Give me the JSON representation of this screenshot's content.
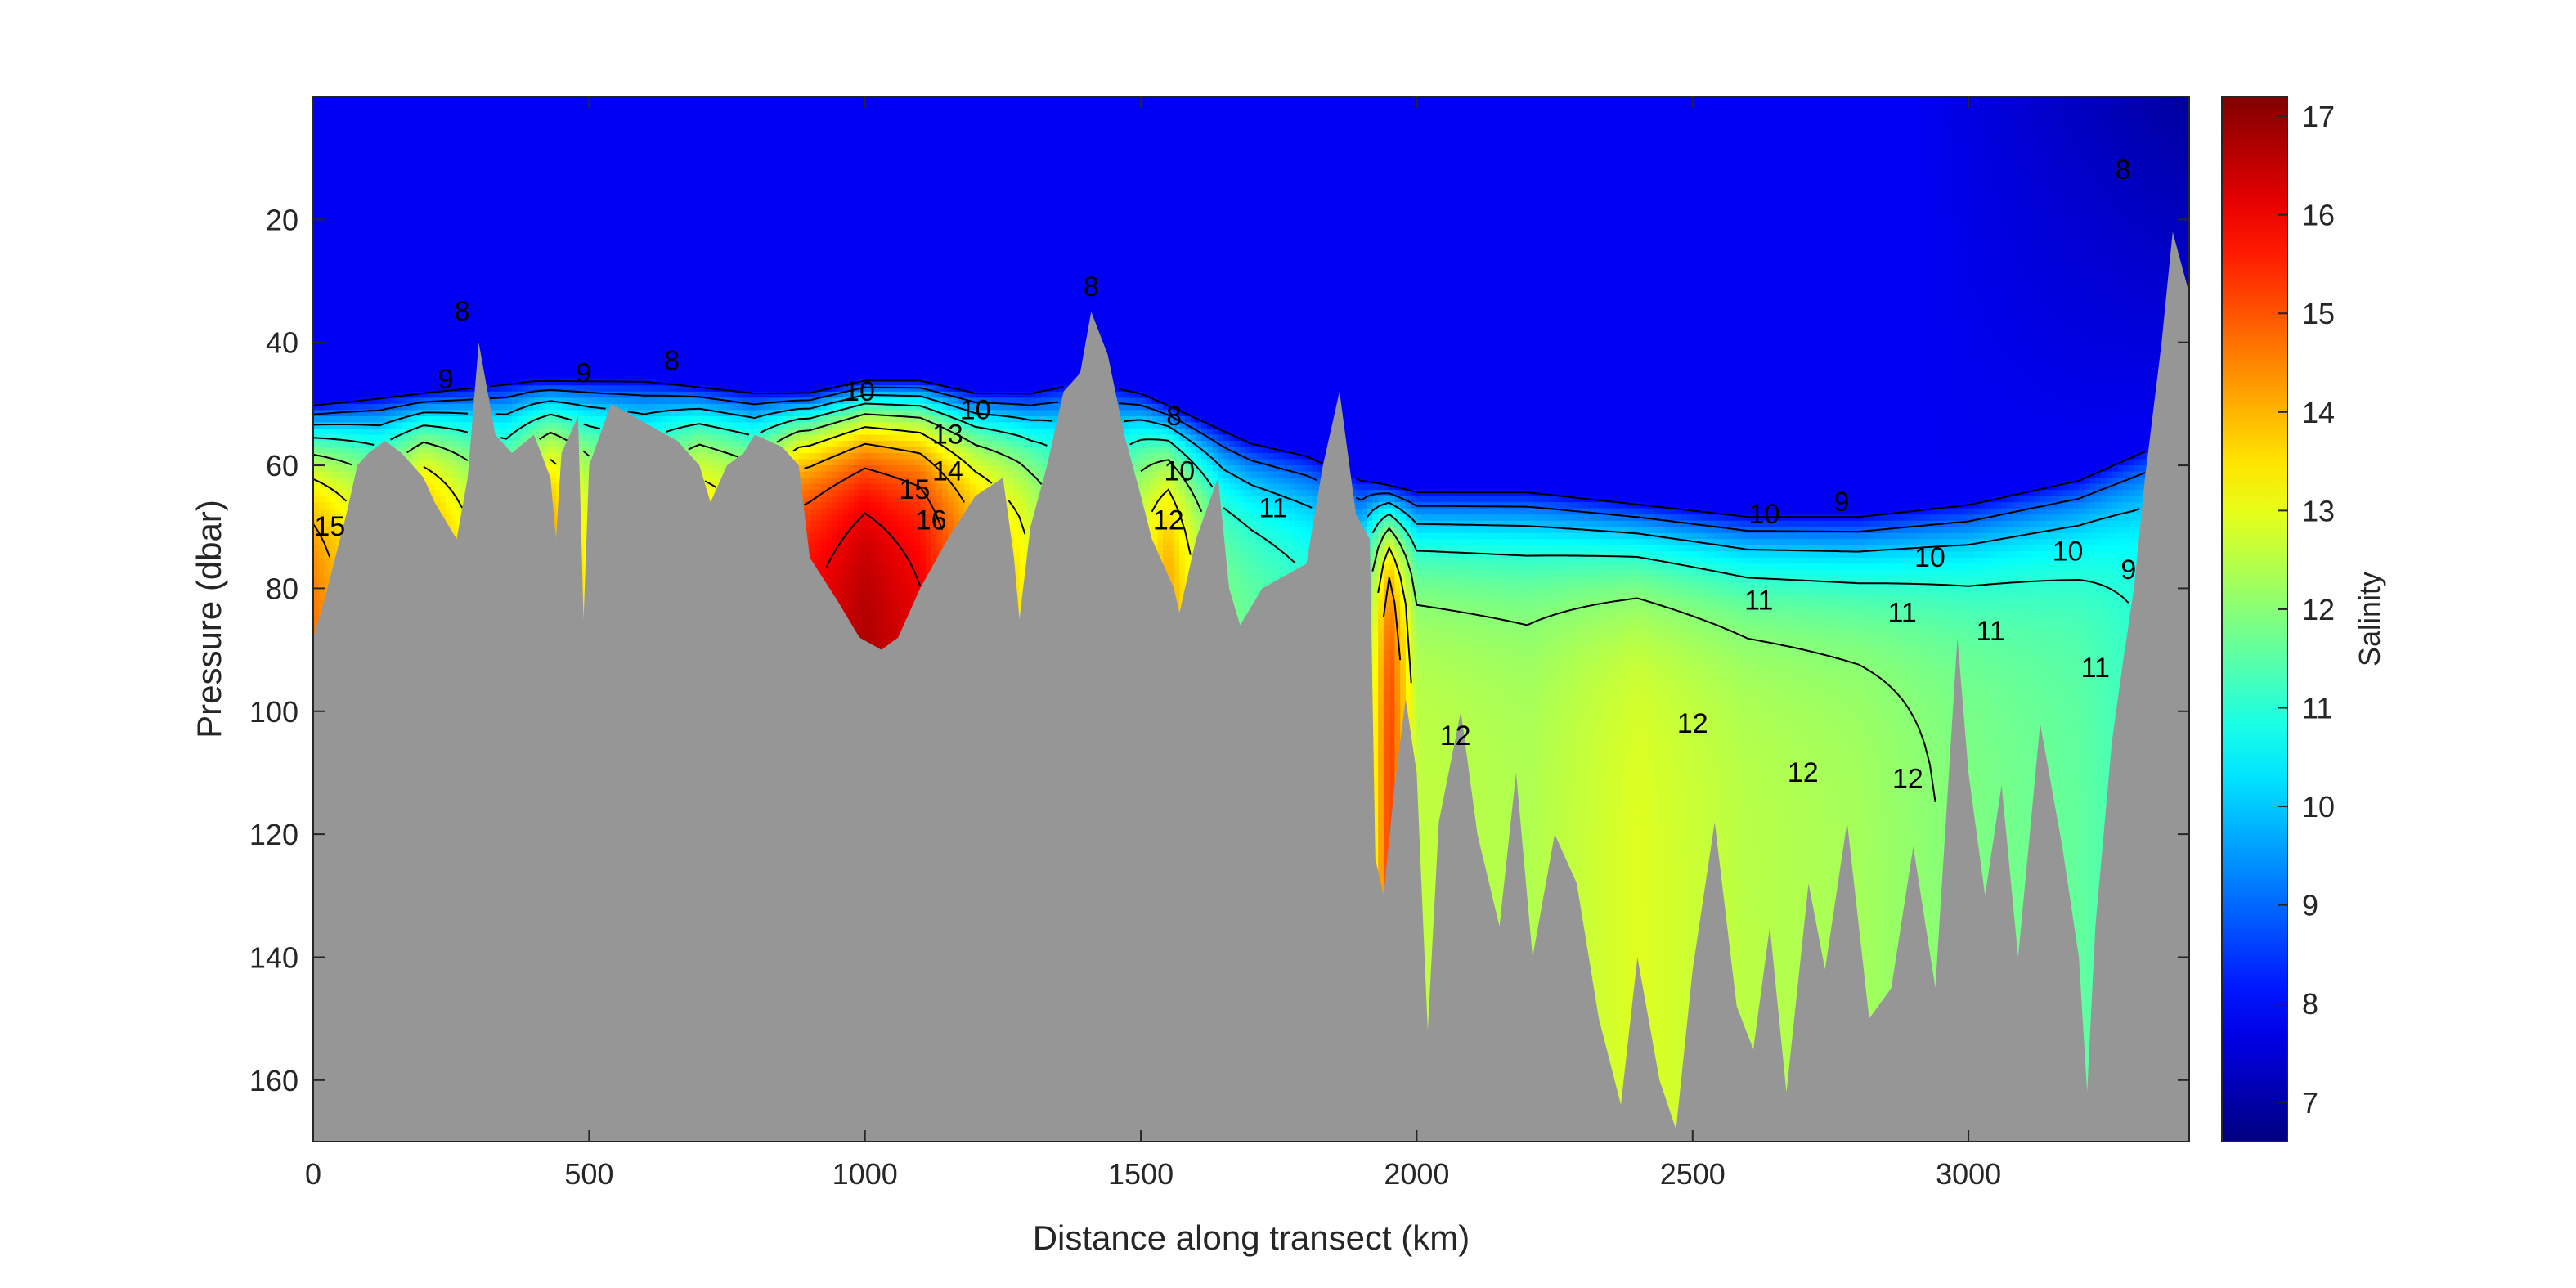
{
  "chart_data": {
    "type": "heatmap",
    "title": "",
    "xlabel": "Distance along transect (km)",
    "ylabel": "Pressure (dbar)",
    "colorbar_label": "Salinity",
    "xlim": [
      0,
      3400
    ],
    "ylim": [
      0,
      170
    ],
    "y_reversed": true,
    "clim": [
      6.6,
      17.2
    ],
    "colormap": "jet",
    "mask_color": "#969696",
    "xticks": [
      0,
      500,
      1000,
      1500,
      2000,
      2500,
      3000
    ],
    "yticks": [
      20,
      40,
      60,
      80,
      100,
      120,
      140,
      160
    ],
    "cbar_ticks": [
      7,
      8,
      9,
      10,
      11,
      12,
      13,
      14,
      15,
      16,
      17
    ],
    "contour_levels": [
      6,
      7,
      8,
      9,
      10,
      11,
      12,
      13,
      14,
      15,
      16
    ],
    "surface_salinity": 7.8,
    "bottom_depth": [
      [
        0,
        88
      ],
      [
        20,
        82
      ],
      [
        40,
        75
      ],
      [
        60,
        68
      ],
      [
        80,
        60
      ],
      [
        100,
        58
      ],
      [
        130,
        56
      ],
      [
        160,
        58
      ],
      [
        200,
        62
      ],
      [
        220,
        66
      ],
      [
        260,
        72
      ],
      [
        280,
        62
      ],
      [
        300,
        40
      ],
      [
        330,
        55
      ],
      [
        360,
        58
      ],
      [
        400,
        55
      ],
      [
        430,
        62
      ],
      [
        440,
        72
      ],
      [
        450,
        58
      ],
      [
        480,
        52
      ],
      [
        490,
        85
      ],
      [
        500,
        60
      ],
      [
        540,
        50
      ],
      [
        580,
        52
      ],
      [
        620,
        54
      ],
      [
        660,
        56
      ],
      [
        700,
        60
      ],
      [
        720,
        66
      ],
      [
        750,
        60
      ],
      [
        780,
        58
      ],
      [
        800,
        55
      ],
      [
        850,
        57
      ],
      [
        880,
        60
      ],
      [
        900,
        75
      ],
      [
        950,
        82
      ],
      [
        990,
        88
      ],
      [
        1030,
        90
      ],
      [
        1060,
        88
      ],
      [
        1100,
        80
      ],
      [
        1150,
        72
      ],
      [
        1200,
        65
      ],
      [
        1250,
        62
      ],
      [
        1270,
        75
      ],
      [
        1280,
        85
      ],
      [
        1300,
        70
      ],
      [
        1330,
        60
      ],
      [
        1360,
        48
      ],
      [
        1390,
        45
      ],
      [
        1410,
        35
      ],
      [
        1440,
        42
      ],
      [
        1470,
        55
      ],
      [
        1500,
        65
      ],
      [
        1520,
        72
      ],
      [
        1560,
        80
      ],
      [
        1570,
        84
      ],
      [
        1600,
        72
      ],
      [
        1640,
        62
      ],
      [
        1660,
        80
      ],
      [
        1680,
        86
      ],
      [
        1720,
        80
      ],
      [
        1760,
        78
      ],
      [
        1800,
        76
      ],
      [
        1830,
        60
      ],
      [
        1860,
        48
      ],
      [
        1890,
        68
      ],
      [
        1915,
        72
      ],
      [
        1925,
        124
      ],
      [
        1940,
        130
      ],
      [
        1960,
        112
      ],
      [
        1980,
        98
      ],
      [
        2000,
        110
      ],
      [
        2020,
        152
      ],
      [
        2040,
        118
      ],
      [
        2080,
        100
      ],
      [
        2110,
        120
      ],
      [
        2150,
        135
      ],
      [
        2180,
        110
      ],
      [
        2210,
        140
      ],
      [
        2250,
        120
      ],
      [
        2290,
        128
      ],
      [
        2330,
        150
      ],
      [
        2370,
        164
      ],
      [
        2400,
        140
      ],
      [
        2440,
        160
      ],
      [
        2470,
        168
      ],
      [
        2500,
        142
      ],
      [
        2540,
        118
      ],
      [
        2580,
        148
      ],
      [
        2610,
        155
      ],
      [
        2640,
        135
      ],
      [
        2670,
        162
      ],
      [
        2710,
        128
      ],
      [
        2740,
        142
      ],
      [
        2780,
        118
      ],
      [
        2820,
        150
      ],
      [
        2860,
        145
      ],
      [
        2900,
        122
      ],
      [
        2940,
        145
      ],
      [
        2980,
        88
      ],
      [
        3000,
        110
      ],
      [
        3030,
        130
      ],
      [
        3060,
        112
      ],
      [
        3090,
        140
      ],
      [
        3130,
        102
      ],
      [
        3170,
        122
      ],
      [
        3200,
        140
      ],
      [
        3215,
        162
      ],
      [
        3230,
        135
      ],
      [
        3260,
        105
      ],
      [
        3280,
        92
      ],
      [
        3300,
        80
      ],
      [
        3320,
        62
      ],
      [
        3350,
        40
      ],
      [
        3370,
        22
      ],
      [
        3400,
        32
      ]
    ],
    "halocline_depth": [
      [
        0,
        50
      ],
      [
        200,
        48
      ],
      [
        400,
        46
      ],
      [
        600,
        46
      ],
      [
        800,
        48
      ],
      [
        900,
        48
      ],
      [
        1000,
        46
      ],
      [
        1100,
        46
      ],
      [
        1200,
        48
      ],
      [
        1300,
        48
      ],
      [
        1400,
        46
      ],
      [
        1500,
        48
      ],
      [
        1600,
        52
      ],
      [
        1700,
        56
      ],
      [
        1800,
        58
      ],
      [
        1900,
        62
      ],
      [
        2000,
        64
      ],
      [
        2200,
        64
      ],
      [
        2400,
        66
      ],
      [
        2600,
        68
      ],
      [
        2800,
        68
      ],
      [
        3000,
        66
      ],
      [
        3200,
        62
      ],
      [
        3300,
        58
      ],
      [
        3400,
        54
      ]
    ],
    "deep_salinity": [
      [
        0,
        14.8
      ],
      [
        60,
        14.0
      ],
      [
        120,
        13.2
      ],
      [
        200,
        14.8
      ],
      [
        280,
        13.5
      ],
      [
        350,
        12.8
      ],
      [
        430,
        14.6
      ],
      [
        500,
        13.4
      ],
      [
        600,
        12.5
      ],
      [
        700,
        14.2
      ],
      [
        800,
        13.6
      ],
      [
        880,
        16.0
      ],
      [
        1000,
        16.8
      ],
      [
        1100,
        16.2
      ],
      [
        1200,
        14.6
      ],
      [
        1280,
        13.6
      ],
      [
        1350,
        12.4
      ],
      [
        1450,
        12.2
      ],
      [
        1550,
        14.4
      ],
      [
        1650,
        12.0
      ],
      [
        1800,
        11.4
      ],
      [
        1900,
        11.4
      ],
      [
        1950,
        15.4
      ],
      [
        2000,
        12.6
      ],
      [
        2200,
        12.4
      ],
      [
        2400,
        12.9
      ],
      [
        2600,
        12.5
      ],
      [
        2800,
        12.3
      ],
      [
        3000,
        11.9
      ],
      [
        3200,
        11.6
      ],
      [
        3300,
        11.2
      ],
      [
        3400,
        11.0
      ]
    ],
    "contour_labels": [
      {
        "text": "9",
        "x": 240,
        "y": 46
      },
      {
        "text": "8",
        "x": 270,
        "y": 35
      },
      {
        "text": "9",
        "x": 490,
        "y": 45
      },
      {
        "text": "8",
        "x": 650,
        "y": 43
      },
      {
        "text": "15",
        "x": 30,
        "y": 70
      },
      {
        "text": "10",
        "x": 990,
        "y": 48
      },
      {
        "text": "13",
        "x": 1150,
        "y": 55
      },
      {
        "text": "14",
        "x": 1150,
        "y": 61
      },
      {
        "text": "15",
        "x": 1090,
        "y": 64
      },
      {
        "text": "16",
        "x": 1120,
        "y": 69
      },
      {
        "text": "10",
        "x": 1200,
        "y": 51
      },
      {
        "text": "8",
        "x": 1410,
        "y": 31
      },
      {
        "text": "8",
        "x": 1560,
        "y": 52
      },
      {
        "text": "10",
        "x": 1570,
        "y": 61
      },
      {
        "text": "12",
        "x": 1550,
        "y": 69
      },
      {
        "text": "11",
        "x": 1740,
        "y": 67
      },
      {
        "text": "10",
        "x": 2630,
        "y": 68
      },
      {
        "text": "9",
        "x": 2770,
        "y": 66
      },
      {
        "text": "10",
        "x": 2930,
        "y": 75
      },
      {
        "text": "10",
        "x": 3180,
        "y": 74
      },
      {
        "text": "11",
        "x": 2620,
        "y": 82
      },
      {
        "text": "11",
        "x": 2880,
        "y": 84
      },
      {
        "text": "11",
        "x": 3040,
        "y": 87
      },
      {
        "text": "11",
        "x": 3230,
        "y": 93
      },
      {
        "text": "12",
        "x": 2070,
        "y": 104
      },
      {
        "text": "12",
        "x": 2500,
        "y": 102
      },
      {
        "text": "12",
        "x": 2700,
        "y": 110
      },
      {
        "text": "12",
        "x": 2890,
        "y": 111
      },
      {
        "text": "9",
        "x": 3290,
        "y": 77
      },
      {
        "text": "8",
        "x": 3280,
        "y": 12
      }
    ]
  }
}
